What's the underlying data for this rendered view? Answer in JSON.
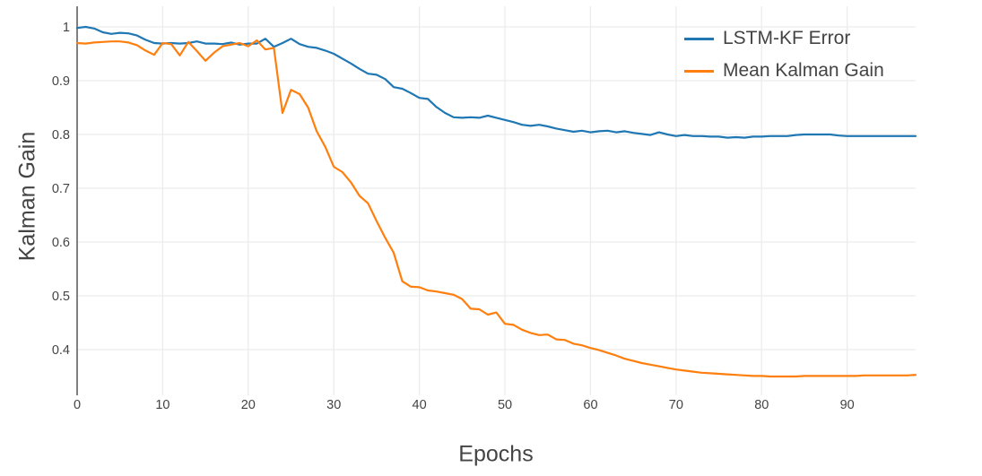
{
  "figure": {
    "background_color": "#ffffff",
    "grid_color": "#ececec",
    "axis_line_color": "#808080",
    "tick_label_color": "#444444",
    "title_color": "#444444"
  },
  "chart_data": {
    "type": "line",
    "title": "",
    "xlabel": "Epochs",
    "ylabel": "Kalman Gain",
    "xlim": [
      0,
      98
    ],
    "ylim": [
      0.315,
      1.038
    ],
    "grid": true,
    "legend_position": "top-right",
    "x_ticks": [
      0,
      10,
      20,
      30,
      40,
      50,
      60,
      70,
      80,
      90
    ],
    "y_ticks": [
      0.4,
      0.5,
      0.6,
      0.7,
      0.8,
      0.9,
      1
    ],
    "y_tick_labels": [
      "0.4",
      "0.5",
      "0.6",
      "0.7",
      "0.8",
      "0.9",
      "1"
    ],
    "x": [
      0,
      1,
      2,
      3,
      4,
      5,
      6,
      7,
      8,
      9,
      10,
      11,
      12,
      13,
      14,
      15,
      16,
      17,
      18,
      19,
      20,
      21,
      22,
      23,
      24,
      25,
      26,
      27,
      28,
      29,
      30,
      31,
      32,
      33,
      34,
      35,
      36,
      37,
      38,
      39,
      40,
      41,
      42,
      43,
      44,
      45,
      46,
      47,
      48,
      49,
      50,
      51,
      52,
      53,
      54,
      55,
      56,
      57,
      58,
      59,
      60,
      61,
      62,
      63,
      64,
      65,
      66,
      67,
      68,
      69,
      70,
      71,
      72,
      73,
      74,
      75,
      76,
      77,
      78,
      79,
      80,
      81,
      82,
      83,
      84,
      85,
      86,
      87,
      88,
      89,
      90,
      91,
      92,
      93,
      94,
      95,
      96,
      97,
      98
    ],
    "series": [
      {
        "name": "LSTM-KF Error",
        "color": "#1f77b4",
        "values": [
          0.998,
          1.0,
          0.997,
          0.99,
          0.987,
          0.989,
          0.988,
          0.984,
          0.976,
          0.97,
          0.969,
          0.97,
          0.969,
          0.97,
          0.973,
          0.969,
          0.969,
          0.968,
          0.971,
          0.967,
          0.969,
          0.969,
          0.978,
          0.963,
          0.97,
          0.978,
          0.968,
          0.963,
          0.961,
          0.956,
          0.95,
          0.941,
          0.932,
          0.922,
          0.913,
          0.911,
          0.903,
          0.888,
          0.885,
          0.877,
          0.868,
          0.866,
          0.851,
          0.84,
          0.832,
          0.831,
          0.832,
          0.831,
          0.835,
          0.831,
          0.827,
          0.823,
          0.818,
          0.816,
          0.818,
          0.815,
          0.811,
          0.808,
          0.805,
          0.807,
          0.804,
          0.806,
          0.807,
          0.804,
          0.806,
          0.803,
          0.801,
          0.799,
          0.804,
          0.8,
          0.797,
          0.799,
          0.797,
          0.797,
          0.796,
          0.796,
          0.794,
          0.795,
          0.794,
          0.796,
          0.796,
          0.797,
          0.797,
          0.797,
          0.799,
          0.8,
          0.8,
          0.8,
          0.8,
          0.798,
          0.797,
          0.797,
          0.797,
          0.797,
          0.797,
          0.797,
          0.797,
          0.797,
          0.797
        ]
      },
      {
        "name": "Mean Kalman Gain",
        "color": "#ff7f0e",
        "values": [
          0.97,
          0.969,
          0.971,
          0.972,
          0.973,
          0.973,
          0.971,
          0.966,
          0.956,
          0.948,
          0.97,
          0.968,
          0.947,
          0.972,
          0.955,
          0.937,
          0.952,
          0.964,
          0.967,
          0.97,
          0.964,
          0.975,
          0.958,
          0.961,
          0.84,
          0.883,
          0.875,
          0.85,
          0.806,
          0.777,
          0.74,
          0.73,
          0.711,
          0.686,
          0.672,
          0.639,
          0.608,
          0.58,
          0.527,
          0.517,
          0.516,
          0.51,
          0.508,
          0.505,
          0.502,
          0.494,
          0.476,
          0.475,
          0.465,
          0.469,
          0.448,
          0.446,
          0.437,
          0.431,
          0.427,
          0.428,
          0.419,
          0.418,
          0.411,
          0.408,
          0.403,
          0.399,
          0.394,
          0.389,
          0.383,
          0.379,
          0.375,
          0.372,
          0.369,
          0.366,
          0.363,
          0.361,
          0.359,
          0.357,
          0.356,
          0.355,
          0.354,
          0.353,
          0.352,
          0.351,
          0.351,
          0.35,
          0.35,
          0.35,
          0.35,
          0.351,
          0.351,
          0.351,
          0.351,
          0.351,
          0.351,
          0.351,
          0.352,
          0.352,
          0.352,
          0.352,
          0.352,
          0.352,
          0.353
        ]
      }
    ]
  }
}
